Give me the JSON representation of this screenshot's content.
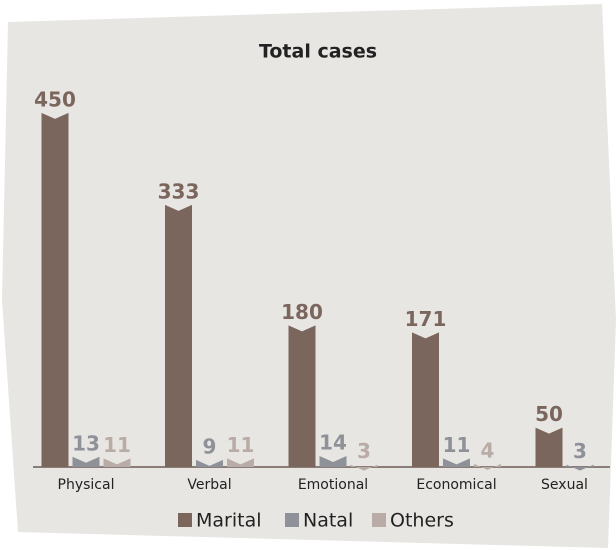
{
  "chart_data": {
    "type": "bar",
    "title": "Total cases",
    "categories": [
      "Physical",
      "Verbal",
      "Emotional",
      "Economical",
      "Sexual"
    ],
    "series": [
      {
        "name": "Marital",
        "color": "#7b665e",
        "values": [
          450,
          333,
          180,
          171,
          50
        ]
      },
      {
        "name": "Natal",
        "color": "#8e9298",
        "values": [
          13,
          9,
          14,
          11,
          3
        ]
      },
      {
        "name": "Others",
        "color": "#b9aba6",
        "values": [
          11,
          11,
          3,
          4,
          null
        ]
      }
    ]
  }
}
